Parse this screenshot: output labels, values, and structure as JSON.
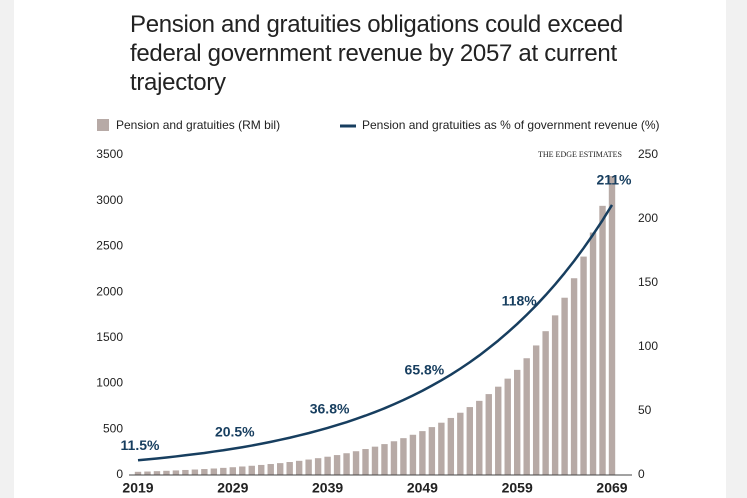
{
  "chart_data": {
    "type": "bar_line",
    "title": "Pension and gratuities obligations could exceed federal government revenue by 2057 at current trajectory",
    "source": "THE EDGE ESTIMATES",
    "categories": [
      "2019",
      null,
      null,
      null,
      null,
      null,
      null,
      null,
      null,
      null,
      "2029",
      null,
      null,
      null,
      null,
      null,
      null,
      null,
      null,
      null,
      "2039",
      null,
      null,
      null,
      null,
      null,
      null,
      null,
      null,
      null,
      "2049",
      null,
      null,
      null,
      null,
      null,
      null,
      null,
      null,
      null,
      "2059",
      null,
      null,
      null,
      null,
      null,
      null,
      null,
      null,
      null,
      "2069"
    ],
    "series": [
      {
        "name": "Pension and gratuities (RM bil)",
        "type": "bar",
        "color": "#b7aaa6",
        "values": [
          35,
          38,
          42,
          46,
          50,
          55,
          60,
          65,
          71,
          78,
          85,
          93,
          101,
          110,
          120,
          130,
          142,
          155,
          169,
          184,
          200,
          218,
          238,
          260,
          284,
          310,
          338,
          369,
          403,
          440,
          480,
          524,
          572,
          624,
          681,
          743,
          811,
          885,
          966,
          1054,
          1150,
          1277,
          1417,
          1573,
          1746,
          1939,
          2152,
          2389,
          2652,
          2944,
          3270
        ]
      },
      {
        "name": "Pension and gratuities as % of government revenue (%)",
        "type": "line",
        "axis": "y2",
        "color": "#173e5f",
        "values": [
          11.5,
          12.2,
          12.9,
          13.7,
          14.5,
          15.4,
          16.3,
          17.2,
          18.3,
          19.3,
          20.5,
          21.7,
          23.0,
          24.4,
          25.9,
          27.5,
          29.1,
          30.9,
          32.7,
          34.7,
          36.8,
          39.0,
          41.3,
          43.8,
          46.4,
          49.2,
          52.1,
          55.3,
          58.6,
          62.1,
          65.8,
          69.8,
          74.0,
          78.4,
          83.1,
          88.1,
          93.4,
          99.1,
          105.0,
          111.4,
          118,
          125.1,
          132.5,
          140.5,
          148.9,
          157.8,
          167.2,
          177.2,
          187.8,
          199.0,
          211
        ],
        "value_labels": [
          "11.5%",
          null,
          null,
          null,
          null,
          null,
          null,
          null,
          null,
          null,
          "20.5%",
          null,
          null,
          null,
          null,
          null,
          null,
          null,
          null,
          null,
          "36.8%",
          null,
          null,
          null,
          null,
          null,
          null,
          null,
          null,
          null,
          "65.8%",
          null,
          null,
          null,
          null,
          null,
          null,
          null,
          null,
          null,
          "118%",
          null,
          null,
          null,
          null,
          null,
          null,
          null,
          null,
          null,
          "211%"
        ]
      }
    ],
    "ylim": [
      0,
      3500
    ],
    "yticks": [
      0,
      500,
      1000,
      1500,
      2000,
      2500,
      3000,
      3500
    ],
    "y2lim": [
      0,
      250
    ],
    "y2ticks": [
      0,
      50,
      100,
      150,
      200,
      250
    ]
  }
}
